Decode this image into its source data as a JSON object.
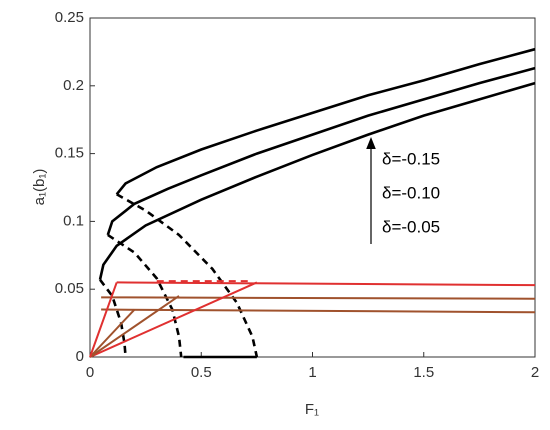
{
  "chart_data": {
    "type": "line",
    "xlabel": "F₁",
    "ylabel": "a₁(b₁)",
    "xlim": [
      0,
      2
    ],
    "ylim": [
      0,
      0.25
    ],
    "xticks": [
      0,
      0.5,
      1,
      1.5,
      2
    ],
    "yticks": [
      0,
      0.05,
      0.1,
      0.15,
      0.2,
      0.25
    ],
    "annotations": [
      "δ=-0.15",
      "δ=-0.10",
      "δ=-0.05"
    ],
    "series": [
      {
        "color": "#000000",
        "dash": false,
        "x": [
          0.12,
          0.16,
          0.3,
          0.5,
          0.75,
          1,
          1.25,
          1.5,
          1.75,
          2
        ],
        "values": [
          0.12,
          0.128,
          0.14,
          0.153,
          0.167,
          0.18,
          0.193,
          0.204,
          0.216,
          0.227
        ]
      },
      {
        "color": "#000000",
        "dash": false,
        "x": [
          0.08,
          0.1,
          0.2,
          0.35,
          0.5,
          0.75,
          1,
          1.25,
          1.5,
          1.75,
          2
        ],
        "values": [
          0.09,
          0.1,
          0.113,
          0.124,
          0.134,
          0.15,
          0.164,
          0.178,
          0.19,
          0.202,
          0.213
        ]
      },
      {
        "color": "#000000",
        "dash": false,
        "x": [
          0.045,
          0.06,
          0.12,
          0.25,
          0.5,
          0.75,
          1,
          1.25,
          1.5,
          1.75,
          2
        ],
        "values": [
          0.057,
          0.068,
          0.082,
          0.097,
          0.116,
          0.133,
          0.149,
          0.164,
          0.178,
          0.19,
          0.202
        ]
      },
      {
        "color": "#000000",
        "dash": true,
        "x": [
          0.12,
          0.25,
          0.4,
          0.55,
          0.66,
          0.73,
          0.75
        ],
        "values": [
          0.12,
          0.108,
          0.09,
          0.065,
          0.04,
          0.015,
          0
        ]
      },
      {
        "color": "#000000",
        "dash": true,
        "x": [
          0.08,
          0.2,
          0.3,
          0.37,
          0.4,
          0.41
        ],
        "values": [
          0.09,
          0.077,
          0.058,
          0.035,
          0.015,
          0
        ]
      },
      {
        "color": "#000000",
        "dash": true,
        "x": [
          0.045,
          0.1,
          0.14,
          0.155,
          0.16
        ],
        "values": [
          0.057,
          0.045,
          0.025,
          0.01,
          0
        ]
      },
      {
        "color": "#000000",
        "dash": false,
        "x": [
          0.42,
          0.75
        ],
        "values": [
          0,
          0
        ]
      },
      {
        "color": "#e03030",
        "dash": false,
        "x": [
          0.12,
          2
        ],
        "values": [
          0.055,
          0.053
        ]
      },
      {
        "color": "#a0522d",
        "dash": false,
        "x": [
          0.05,
          2
        ],
        "values": [
          0.044,
          0.043
        ]
      },
      {
        "color": "#a0522d",
        "dash": false,
        "x": [
          0.05,
          2
        ],
        "values": [
          0.035,
          0.033
        ]
      },
      {
        "color": "#e03030",
        "dash": true,
        "x": [
          0.3,
          0.72
        ],
        "values": [
          0.056,
          0.056
        ]
      },
      {
        "color": "#e03030",
        "dash": false,
        "x": [
          0,
          0.75
        ],
        "values": [
          0,
          0.055
        ]
      },
      {
        "color": "#a0522d",
        "dash": false,
        "x": [
          0,
          0.4
        ],
        "values": [
          0,
          0.045
        ]
      },
      {
        "color": "#a0522d",
        "dash": false,
        "x": [
          0,
          0.2
        ],
        "values": [
          0,
          0.035
        ]
      },
      {
        "color": "#e03030",
        "dash": false,
        "x": [
          0,
          0.12
        ],
        "values": [
          0,
          0.055
        ]
      }
    ]
  }
}
